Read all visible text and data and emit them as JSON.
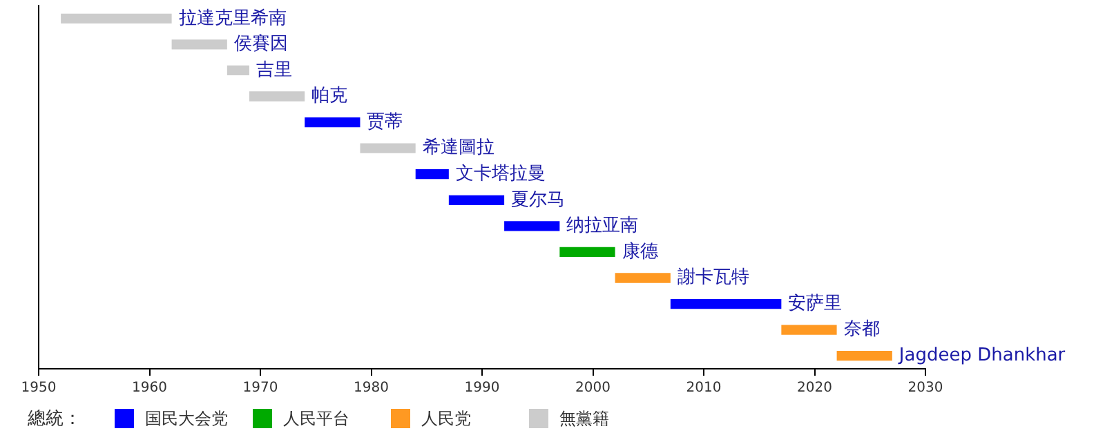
{
  "chart_data": {
    "type": "bar",
    "orientation": "horizontal",
    "legend_title": "總統：",
    "legend": "bottom left",
    "categories": [
      null,
      null,
      null,
      null,
      null,
      null,
      null,
      null,
      null,
      null,
      null,
      null,
      null,
      null
    ],
    "series": [
      {
        "name": "国民大会党",
        "color": "#0000ff",
        "base": [
          null,
          null,
          null,
          null,
          1974,
          null,
          1984,
          1987,
          1992,
          null,
          null,
          2007,
          null,
          null
        ],
        "values": [
          null,
          null,
          null,
          null,
          5,
          null,
          3,
          5,
          5,
          null,
          null,
          10,
          null,
          null
        ],
        "value_labels": [
          null,
          null,
          null,
          null,
          "贾蒂",
          null,
          "文卡塔拉曼",
          "夏尔马",
          "纳拉亚南",
          null,
          null,
          "安萨里",
          null,
          null
        ]
      },
      {
        "name": "人民平台",
        "color": "#00aa00",
        "base": [
          null,
          null,
          null,
          null,
          null,
          null,
          null,
          null,
          null,
          1997,
          null,
          null,
          null,
          null
        ],
        "values": [
          null,
          null,
          null,
          null,
          null,
          null,
          null,
          null,
          null,
          5,
          null,
          null,
          null,
          null
        ],
        "value_labels": [
          null,
          null,
          null,
          null,
          null,
          null,
          null,
          null,
          null,
          "康德",
          null,
          null,
          null,
          null
        ]
      },
      {
        "name": "人民党",
        "color": "#ff9922",
        "base": [
          null,
          null,
          null,
          null,
          null,
          null,
          null,
          null,
          null,
          null,
          2002,
          null,
          2017,
          2022
        ],
        "values": [
          null,
          null,
          null,
          null,
          null,
          null,
          null,
          null,
          null,
          null,
          5,
          null,
          5,
          5
        ],
        "value_labels": [
          null,
          null,
          null,
          null,
          null,
          null,
          null,
          null,
          null,
          null,
          "謝卡瓦特",
          null,
          "奈都",
          "Jagdeep Dhankhar"
        ]
      },
      {
        "name": "無黨籍",
        "color": "#cccccc",
        "base": [
          1952,
          1962,
          1967,
          1969,
          null,
          1979,
          null,
          null,
          null,
          null,
          null,
          null,
          null,
          null
        ],
        "values": [
          10,
          5,
          2,
          5,
          null,
          5,
          null,
          null,
          null,
          null,
          null,
          null,
          null,
          null
        ],
        "value_labels": [
          "拉達克里希南",
          "侯賽因",
          "吉里",
          "帕克",
          null,
          "希達圖拉",
          null,
          null,
          null,
          null,
          null,
          null,
          null,
          null
        ]
      }
    ],
    "xlim": [
      1950,
      2030
    ],
    "xticks": [
      1950,
      1960,
      1970,
      1980,
      1990,
      2000,
      2010,
      2020,
      2030
    ],
    "grid": false,
    "tick_labels": "x"
  }
}
